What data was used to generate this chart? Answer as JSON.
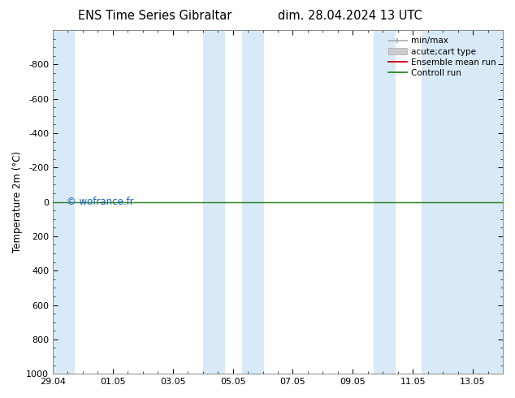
{
  "title_left": "ENS Time Series Gibraltar",
  "title_right": "dim. 28.04.2024 13 UTC",
  "ylabel": "Temperature 2m (°C)",
  "ylim_bottom": 1000,
  "ylim_top": -1000,
  "yticks": [
    -800,
    -600,
    -400,
    -200,
    0,
    200,
    400,
    600,
    800,
    1000
  ],
  "xlim_start": 0,
  "xlim_end": 15.0,
  "xtick_labels": [
    "29.04",
    "01.05",
    "03.05",
    "05.05",
    "07.05",
    "09.05",
    "11.05",
    "13.05"
  ],
  "xtick_positions": [
    0,
    2,
    4,
    6,
    8,
    10,
    12,
    14
  ],
  "blue_bands": [
    [
      0.0,
      0.7
    ],
    [
      5.0,
      5.7
    ],
    [
      6.3,
      7.0
    ],
    [
      10.7,
      11.4
    ],
    [
      12.3,
      15.0
    ]
  ],
  "band_color": "#d8eaf8",
  "watermark": "© wofrance.fr",
  "watermark_color": "#1565C0",
  "bg_color": "#ffffff",
  "control_run_color": "#228B22",
  "ensemble_mean_color": "#cc0000",
  "legend_entries": [
    "min/max",
    "acute;cart type",
    "Ensemble mean run",
    "Controll run"
  ],
  "title_fontsize": 10.5,
  "tick_fontsize": 8,
  "ylabel_fontsize": 8.5,
  "legend_fontsize": 7.5
}
